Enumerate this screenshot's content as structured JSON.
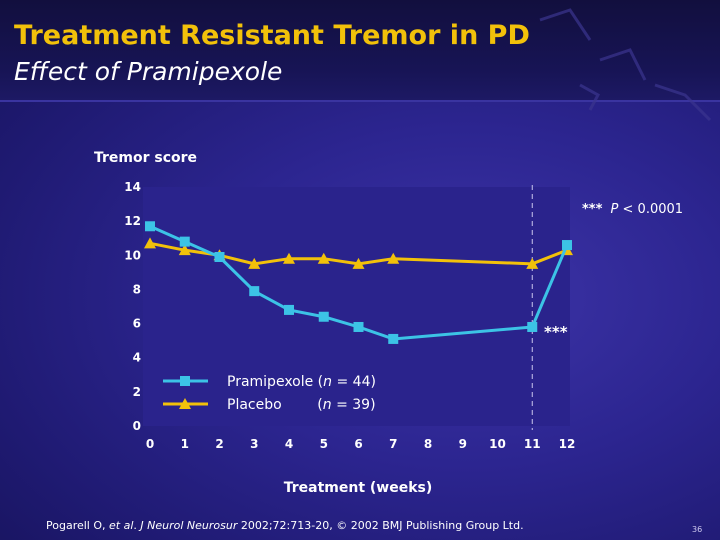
{
  "slide": {
    "title": "Treatment Resistant Tremor in PD",
    "subtitle": "Effect of Pramipexole",
    "footer": {
      "authors": "Pogarell O, ",
      "etal": "et al",
      "punct": ". ",
      "journal": "J Neurol Neurosur",
      "rest": " 2002;72:713-20, © 2002 BMJ Publishing Group Ltd."
    },
    "page_number": "36"
  },
  "colors": {
    "title": "#f2c10a",
    "pramipexole": "#3cc3e6",
    "placebo": "#f2c10a",
    "plot_background": "#2a238c",
    "text": "#ffffff"
  },
  "chart_data": {
    "type": "line",
    "ylabel": "Tremor score",
    "xlabel": "Treatment (weeks)",
    "xlim": [
      0,
      12
    ],
    "ylim": [
      0,
      14
    ],
    "xticks": [
      "0",
      "1",
      "2",
      "3",
      "4",
      "5",
      "6",
      "7",
      "8",
      "9",
      "10",
      "11",
      "12"
    ],
    "yticks": [
      "0",
      "2",
      "4",
      "6",
      "8",
      "10",
      "12",
      "14"
    ],
    "grid": false,
    "legend": {
      "placement": "bottom-left",
      "entries": [
        {
          "pre": "Pramipexole (",
          "n_label": "n",
          "post": " = 44)"
        },
        {
          "pre": "Placebo        (",
          "n_label": "n",
          "post": " = 39)"
        }
      ]
    },
    "series": [
      {
        "key": "pramipexole",
        "marker": "square-icon",
        "x": [
          0,
          1,
          2,
          3,
          4,
          5,
          6,
          7,
          11,
          12
        ],
        "y": [
          11.7,
          10.8,
          9.9,
          7.9,
          6.8,
          6.4,
          5.8,
          5.1,
          5.8,
          10.6
        ]
      },
      {
        "key": "placebo",
        "marker": "triangle-icon",
        "x": [
          0,
          1,
          2,
          3,
          4,
          5,
          6,
          7,
          11,
          12
        ],
        "y": [
          10.7,
          10.3,
          10.0,
          9.5,
          9.8,
          9.8,
          9.5,
          9.8,
          9.5,
          10.3
        ]
      }
    ],
    "reference_line": {
      "x": 11,
      "style": "dashed"
    },
    "annotations": {
      "sig_marker": "***",
      "p_stars": "***",
      "p_label": "P",
      "p_value": " < 0.0001"
    }
  }
}
